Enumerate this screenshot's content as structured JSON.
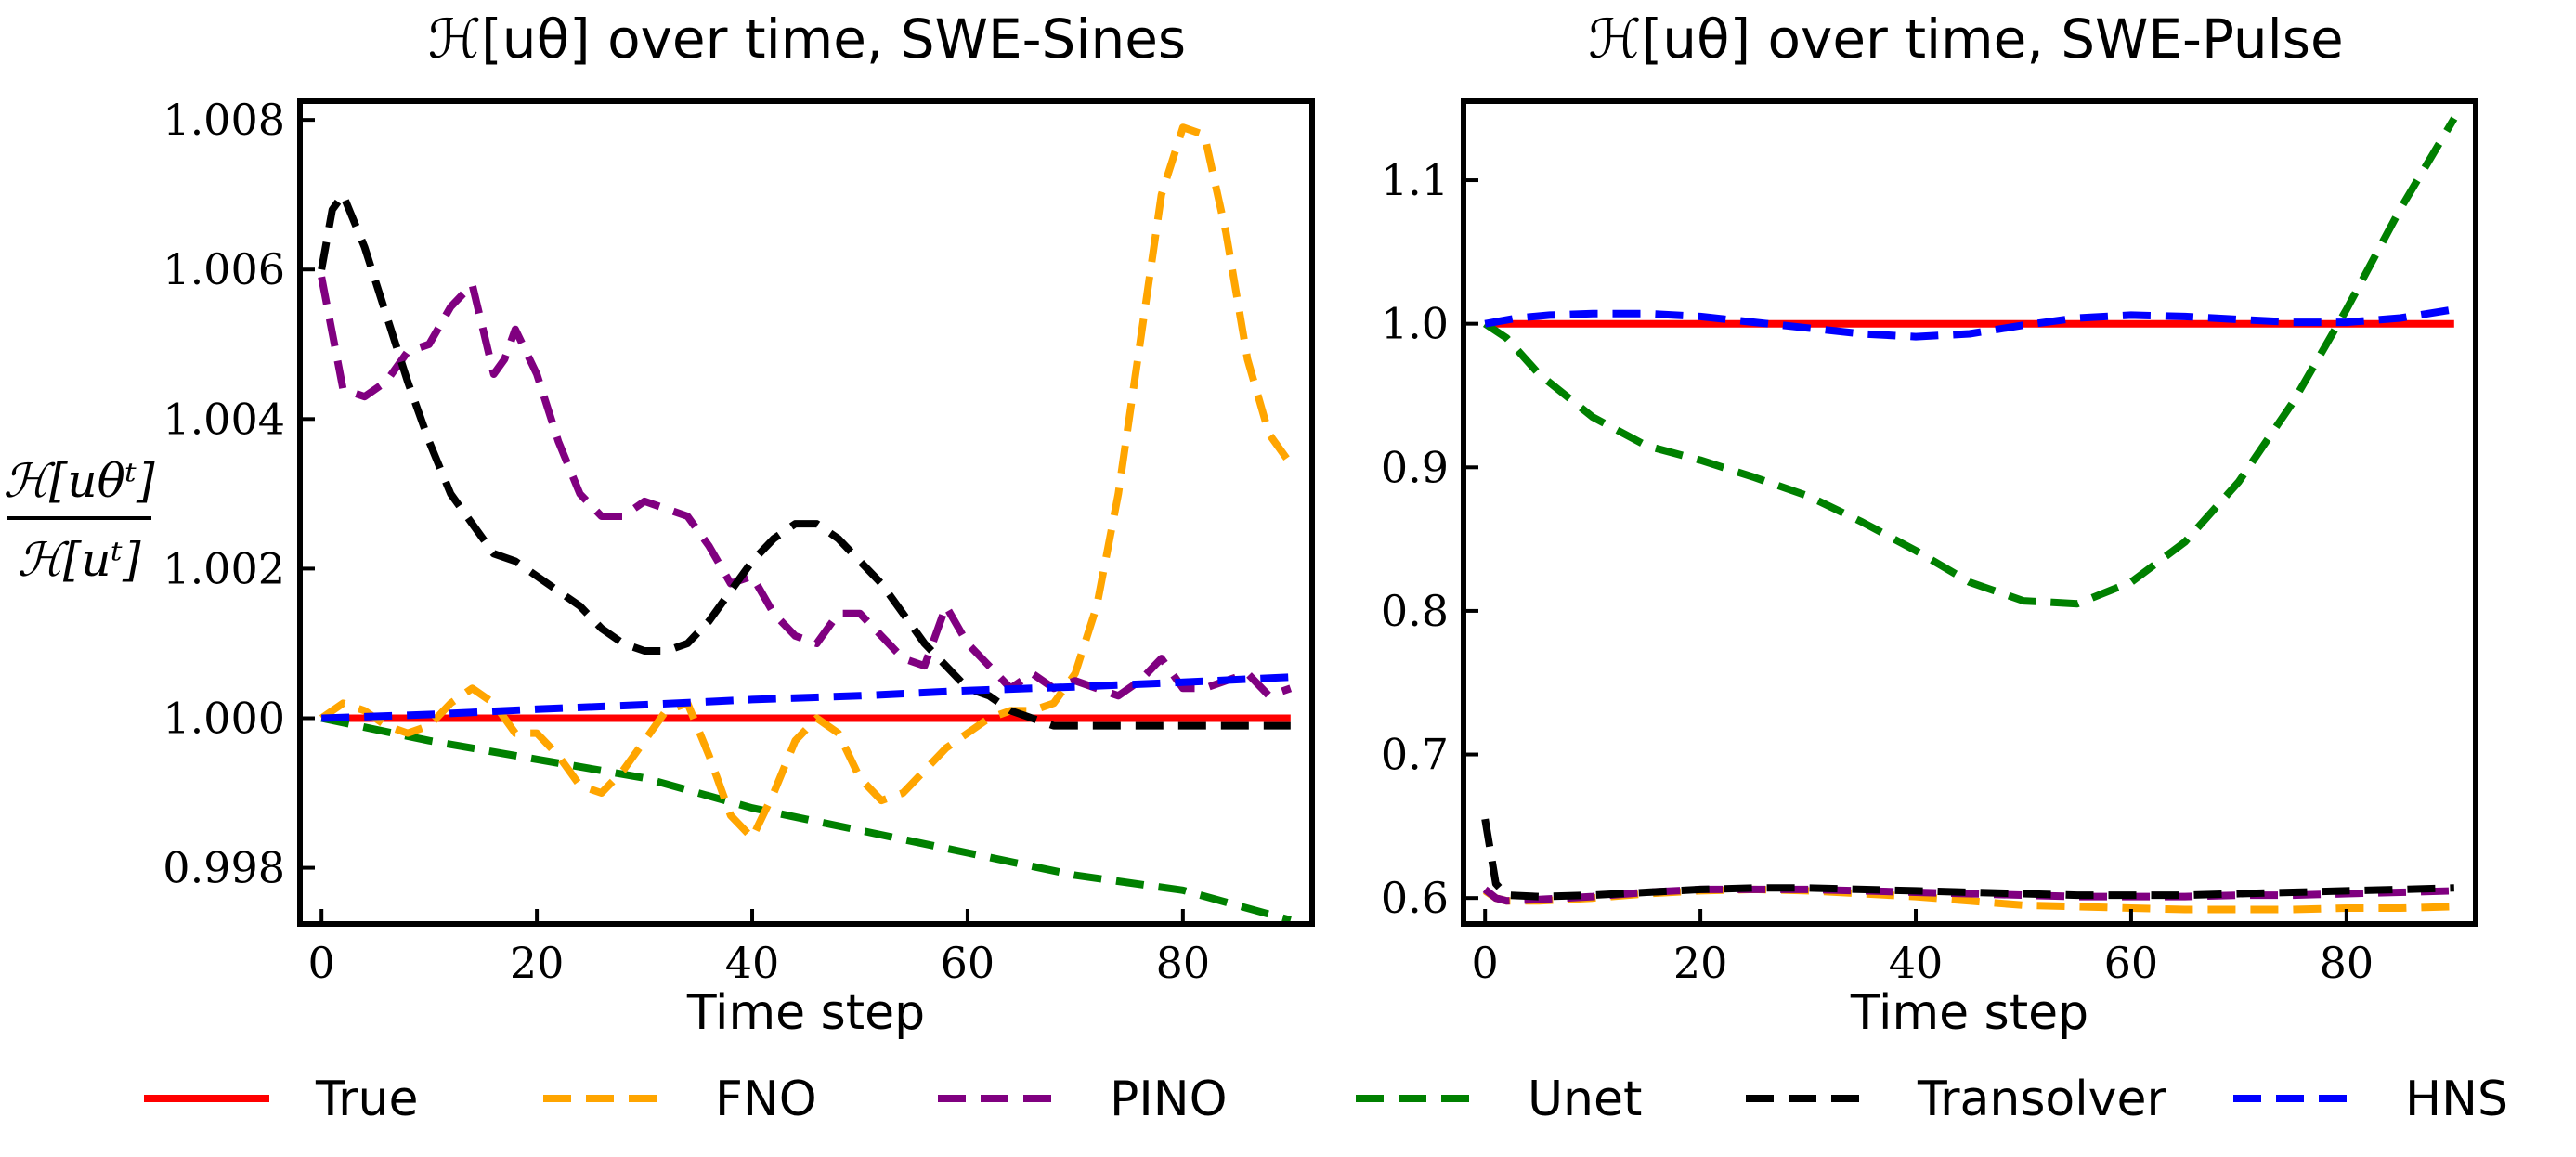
{
  "colors": {
    "True": "#ff0000",
    "FNO": "#ffa500",
    "PINO": "#800080",
    "Unet": "#008000",
    "Transolver": "#000000",
    "HNS": "#0000ff"
  },
  "shared_labels": {
    "y_numerator": "ℋ[uθᵗ]",
    "y_denominator": "ℋ[uᵗ]"
  },
  "legend": [
    "True",
    "FNO",
    "PINO",
    "Unet",
    "Transolver",
    "HNS"
  ],
  "chart_data": [
    {
      "type": "line",
      "title": "ℋ[uθ] over time, SWE-Sines",
      "xlabel": "Time step",
      "ylabel": "ℋ[uθᵗ] / ℋ[uᵗ]",
      "xlim": [
        -2,
        92
      ],
      "ylim": [
        0.99725,
        1.00825
      ],
      "xticks": [
        0,
        20,
        40,
        60,
        80
      ],
      "xtick_labels": [
        "0",
        "20",
        "40",
        "60",
        "80"
      ],
      "yticks": [
        0.998,
        1.0,
        1.002,
        1.004,
        1.006,
        1.008
      ],
      "ytick_labels": [
        "0.998",
        "1.000",
        "1.002",
        "1.004",
        "1.006",
        "1.008"
      ],
      "series": [
        {
          "name": "True",
          "style": "solid",
          "x": [
            0,
            90
          ],
          "y": [
            1.0,
            1.0
          ]
        },
        {
          "name": "Unet",
          "style": "dashed",
          "x": [
            0,
            10,
            20,
            30,
            40,
            50,
            60,
            70,
            80,
            85,
            90
          ],
          "y": [
            1.0,
            0.9997,
            0.99945,
            0.9992,
            0.9988,
            0.9985,
            0.9982,
            0.9979,
            0.9977,
            0.9975,
            0.9973
          ]
        },
        {
          "name": "FNO",
          "style": "dashed",
          "x": [
            0,
            2,
            4,
            6,
            8,
            10,
            12,
            14,
            16,
            18,
            20,
            22,
            24,
            26,
            28,
            30,
            32,
            34,
            36,
            38,
            40,
            42,
            44,
            46,
            48,
            50,
            52,
            54,
            56,
            58,
            60,
            62,
            64,
            66,
            68,
            70,
            72,
            74,
            76,
            78,
            80,
            82,
            84,
            86,
            88,
            90
          ],
          "y": [
            1.0,
            1.0002,
            1.0001,
            0.9999,
            0.9998,
            0.9999,
            1.0002,
            1.0004,
            1.0002,
            0.9998,
            0.9998,
            0.9995,
            0.9991,
            0.999,
            0.9993,
            0.9997,
            1.0001,
            1.0002,
            0.9995,
            0.9987,
            0.9984,
            0.999,
            0.9997,
            1.0,
            0.9998,
            0.9992,
            0.9989,
            0.999,
            0.9993,
            0.9996,
            0.9998,
            1.0,
            1.0001,
            1.0001,
            1.0002,
            1.0006,
            1.0015,
            1.003,
            1.005,
            1.007,
            1.0079,
            1.0078,
            1.0065,
            1.0048,
            1.0038,
            1.0034
          ]
        },
        {
          "name": "PINO",
          "style": "dashed",
          "x": [
            0,
            2,
            4,
            6,
            8,
            10,
            12,
            14,
            16,
            17,
            18,
            20,
            22,
            24,
            26,
            28,
            30,
            32,
            34,
            36,
            38,
            40,
            42,
            44,
            46,
            48,
            50,
            52,
            54,
            56,
            58,
            60,
            62,
            64,
            66,
            68,
            70,
            72,
            74,
            76,
            78,
            80,
            82,
            84,
            86,
            88,
            90
          ],
          "y": [
            1.0059,
            1.0044,
            1.0043,
            1.0045,
            1.0049,
            1.005,
            1.0055,
            1.0058,
            1.0046,
            1.0048,
            1.0052,
            1.0046,
            1.0037,
            1.003,
            1.0027,
            1.0027,
            1.0029,
            1.0028,
            1.0027,
            1.0023,
            1.0018,
            1.0019,
            1.0014,
            1.0011,
            1.001,
            1.0014,
            1.0014,
            1.0011,
            1.0008,
            1.0007,
            1.0015,
            1.001,
            1.0007,
            1.0004,
            1.0006,
            1.0004,
            1.0005,
            1.0004,
            1.0003,
            1.0005,
            1.0008,
            1.0004,
            1.0004,
            1.0005,
            1.0006,
            1.0003,
            1.0004
          ]
        },
        {
          "name": "Transolver",
          "style": "dashed",
          "x": [
            0,
            1,
            2,
            4,
            6,
            8,
            10,
            12,
            14,
            16,
            18,
            20,
            22,
            24,
            26,
            28,
            30,
            32,
            34,
            36,
            38,
            40,
            42,
            44,
            46,
            48,
            50,
            52,
            54,
            56,
            58,
            60,
            62,
            64,
            66,
            68,
            70,
            75,
            80,
            85,
            90
          ],
          "y": [
            1.006,
            1.0068,
            1.007,
            1.0063,
            1.0054,
            1.0045,
            1.0037,
            1.003,
            1.0026,
            1.0022,
            1.0021,
            1.0019,
            1.0017,
            1.0015,
            1.0012,
            1.001,
            1.0009,
            1.0009,
            1.001,
            1.0013,
            1.0017,
            1.0021,
            1.0024,
            1.0026,
            1.0026,
            1.0024,
            1.0021,
            1.0018,
            1.0014,
            1.001,
            1.0007,
            1.0004,
            1.0003,
            1.0001,
            1.0,
            0.9999,
            0.9999,
            0.9999,
            0.9999,
            0.9999,
            0.9999
          ]
        },
        {
          "name": "HNS",
          "style": "dashed",
          "x": [
            0,
            10,
            20,
            30,
            40,
            50,
            60,
            70,
            80,
            90
          ],
          "y": [
            1.0,
            1.00005,
            1.00012,
            1.00018,
            1.00025,
            1.0003,
            1.00037,
            1.00042,
            1.00048,
            1.00055
          ]
        }
      ]
    },
    {
      "type": "line",
      "title": "ℋ[uθ] over time, SWE-Pulse",
      "xlabel": "Time step",
      "ylabel": "",
      "xlim": [
        -2,
        92
      ],
      "ylim": [
        0.582,
        1.155
      ],
      "xticks": [
        0,
        20,
        40,
        60,
        80
      ],
      "xtick_labels": [
        "0",
        "20",
        "40",
        "60",
        "80"
      ],
      "yticks": [
        0.6,
        0.7,
        0.8,
        0.9,
        1.0,
        1.1
      ],
      "ytick_labels": [
        "0.6",
        "0.7",
        "0.8",
        "0.9",
        "1.0",
        "1.1"
      ],
      "series": [
        {
          "name": "True",
          "style": "solid",
          "x": [
            0,
            90
          ],
          "y": [
            1.0,
            1.0
          ]
        },
        {
          "name": "Unet",
          "style": "dashed",
          "x": [
            0,
            2,
            5,
            10,
            15,
            20,
            25,
            30,
            35,
            40,
            45,
            50,
            55,
            60,
            65,
            70,
            75,
            80,
            85,
            90
          ],
          "y": [
            1.0,
            0.99,
            0.965,
            0.935,
            0.915,
            0.905,
            0.893,
            0.88,
            0.862,
            0.842,
            0.82,
            0.807,
            0.805,
            0.82,
            0.848,
            0.89,
            0.945,
            1.01,
            1.08,
            1.143
          ]
        },
        {
          "name": "FNO",
          "style": "dashed",
          "x": [
            0,
            1,
            2,
            5,
            10,
            15,
            20,
            25,
            30,
            35,
            40,
            45,
            50,
            55,
            60,
            65,
            70,
            75,
            80,
            85,
            90
          ],
          "y": [
            0.605,
            0.6,
            0.598,
            0.598,
            0.6,
            0.603,
            0.605,
            0.606,
            0.605,
            0.603,
            0.601,
            0.598,
            0.595,
            0.594,
            0.593,
            0.592,
            0.592,
            0.592,
            0.593,
            0.593,
            0.594
          ]
        },
        {
          "name": "PINO",
          "style": "dashed",
          "x": [
            0,
            1,
            2,
            5,
            10,
            15,
            20,
            25,
            30,
            35,
            40,
            45,
            50,
            55,
            60,
            65,
            70,
            75,
            80,
            85,
            90
          ],
          "y": [
            0.606,
            0.6,
            0.598,
            0.599,
            0.601,
            0.604,
            0.606,
            0.606,
            0.606,
            0.605,
            0.604,
            0.603,
            0.602,
            0.601,
            0.601,
            0.601,
            0.602,
            0.602,
            0.603,
            0.604,
            0.605
          ]
        },
        {
          "name": "Transolver",
          "style": "dashed",
          "x": [
            0,
            1,
            2,
            5,
            10,
            15,
            20,
            25,
            30,
            35,
            40,
            45,
            50,
            55,
            60,
            65,
            70,
            75,
            80,
            85,
            90
          ],
          "y": [
            0.655,
            0.61,
            0.602,
            0.601,
            0.602,
            0.604,
            0.606,
            0.607,
            0.607,
            0.606,
            0.605,
            0.604,
            0.603,
            0.602,
            0.602,
            0.602,
            0.603,
            0.604,
            0.605,
            0.606,
            0.607
          ]
        },
        {
          "name": "HNS",
          "style": "dashed",
          "x": [
            0,
            3,
            6,
            10,
            15,
            20,
            25,
            30,
            35,
            40,
            45,
            50,
            55,
            60,
            65,
            70,
            75,
            80,
            85,
            90
          ],
          "y": [
            1.0,
            1.004,
            1.006,
            1.007,
            1.007,
            1.005,
            1.001,
            0.997,
            0.993,
            0.991,
            0.993,
            0.999,
            1.004,
            1.006,
            1.005,
            1.003,
            1.001,
            1.001,
            1.004,
            1.01
          ]
        }
      ]
    }
  ]
}
